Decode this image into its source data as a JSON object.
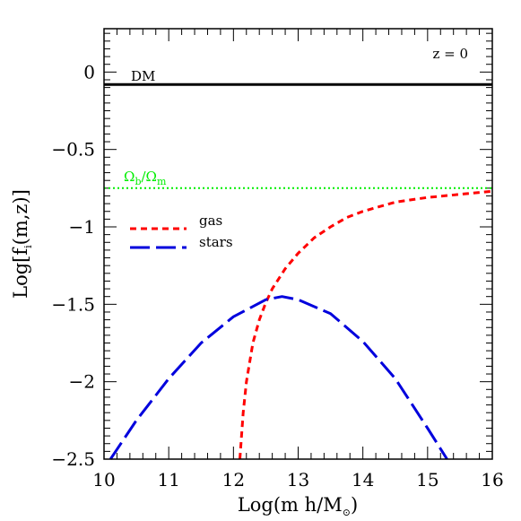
{
  "chart_data": {
    "type": "line",
    "xlabel_main": "Log(m h/M",
    "xlabel_sub": "⊙",
    "xlabel_close": ")",
    "ylabel_main": "Log[f",
    "ylabel_sub": "i",
    "ylabel_rest": "(m,z)]",
    "xlim": [
      10,
      16
    ],
    "ylim": [
      -2.5,
      0.28
    ],
    "x_ticks": [
      10,
      11,
      12,
      13,
      14,
      15,
      16
    ],
    "x_tick_labels": [
      "10",
      "11",
      "12",
      "13",
      "14",
      "15",
      "16"
    ],
    "y_ticks": [
      0,
      -0.5,
      -1,
      -1.5,
      -2,
      -2.5
    ],
    "y_tick_labels": [
      "0",
      "−0.5",
      "−1",
      "−1.5",
      "−2",
      "−2.5"
    ],
    "annotation": "z = 0",
    "legend_position": "upper-left",
    "series": [
      {
        "name": "DM",
        "color": "#000000",
        "style": "solid",
        "x": [
          10,
          16
        ],
        "y": [
          -0.08,
          -0.08
        ]
      },
      {
        "name": "Ω_b/Ω_m",
        "label_main": "Ω",
        "label_sub1": "b",
        "label_slash": "/Ω",
        "label_sub2": "m",
        "color": "#00ee00",
        "style": "dotted",
        "x": [
          10,
          16
        ],
        "y": [
          -0.75,
          -0.75
        ]
      },
      {
        "name": "gas",
        "color": "#ff0000",
        "style": "short-dash",
        "x": [
          12.1,
          12.15,
          12.2,
          12.3,
          12.4,
          12.5,
          12.6,
          12.8,
          13.0,
          13.25,
          13.5,
          13.75,
          14.0,
          14.5,
          15.0,
          15.5,
          16.0
        ],
        "y": [
          -2.5,
          -2.2,
          -2.0,
          -1.75,
          -1.6,
          -1.49,
          -1.4,
          -1.27,
          -1.17,
          -1.07,
          -1.0,
          -0.94,
          -0.9,
          -0.84,
          -0.81,
          -0.79,
          -0.77
        ]
      },
      {
        "name": "stars",
        "color": "#0000dd",
        "style": "long-dash",
        "x": [
          10.1,
          10.5,
          11.0,
          11.5,
          12.0,
          12.5,
          12.75,
          13.0,
          13.5,
          14.0,
          14.5,
          15.0,
          15.3
        ],
        "y": [
          -2.5,
          -2.25,
          -1.98,
          -1.75,
          -1.58,
          -1.47,
          -1.45,
          -1.47,
          -1.56,
          -1.74,
          -1.98,
          -2.3,
          -2.5
        ]
      }
    ]
  }
}
